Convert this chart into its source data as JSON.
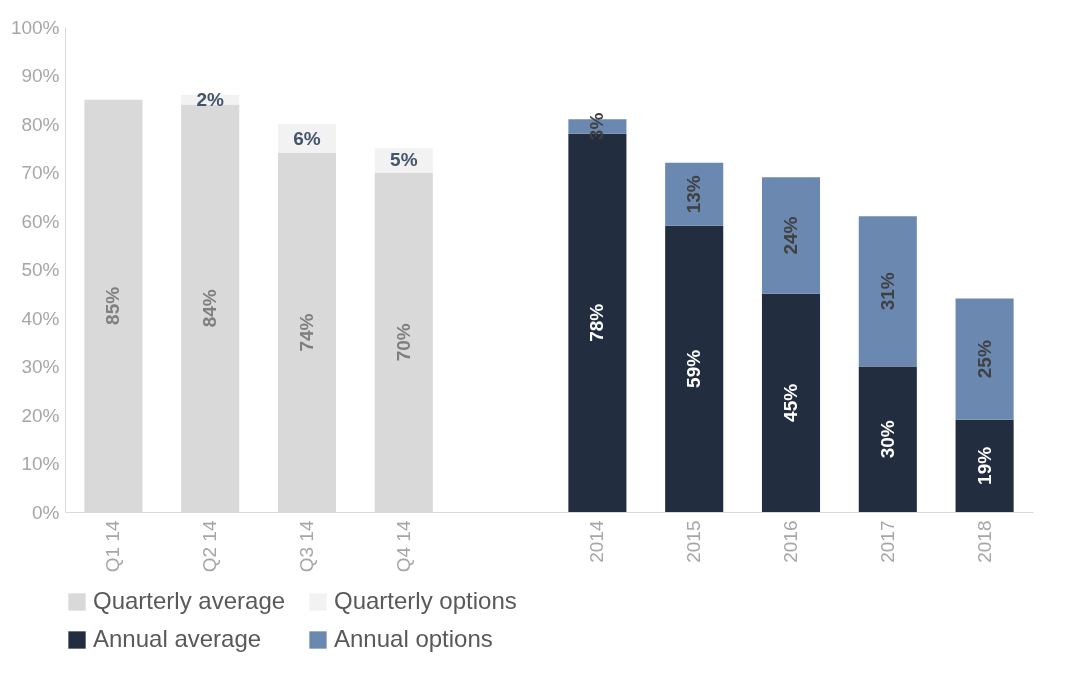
{
  "chart_data": {
    "type": "bar",
    "stacked": true,
    "categories": [
      "Q1 14",
      "Q2 14",
      "Q3 14",
      "Q4 14",
      null,
      "2014",
      "2015",
      "2016",
      "2017",
      "2018"
    ],
    "series": [
      {
        "name": "Quarterly average",
        "color": "#d9d9d9",
        "values": [
          85,
          84,
          74,
          70,
          null,
          null,
          null,
          null,
          null,
          null
        ],
        "value_labels": [
          "85%",
          "84%",
          "74%",
          "70%",
          null,
          null,
          null,
          null,
          null,
          null
        ]
      },
      {
        "name": "Quarterly options",
        "color": "#f2f2f2",
        "values": [
          null,
          2,
          6,
          5,
          null,
          null,
          null,
          null,
          null,
          null
        ],
        "value_labels": [
          null,
          "2%",
          "6%",
          "5%",
          null,
          null,
          null,
          null,
          null,
          null
        ]
      },
      {
        "name": "Annual average",
        "color": "#222d3f",
        "values": [
          null,
          null,
          null,
          null,
          null,
          78,
          59,
          45,
          30,
          19
        ],
        "value_labels": [
          null,
          null,
          null,
          null,
          null,
          "78%",
          "59%",
          "45%",
          "30%",
          "19%"
        ]
      },
      {
        "name": "Annual options",
        "color": "#6a88b0",
        "values": [
          null,
          null,
          null,
          null,
          null,
          3,
          13,
          24,
          31,
          25
        ],
        "value_labels": [
          null,
          null,
          null,
          null,
          null,
          "3%",
          "13%",
          "24%",
          "31%",
          "25%"
        ]
      }
    ],
    "ylim": [
      0,
      100
    ],
    "yticks": [
      {
        "value": 0,
        "label": "0%"
      },
      {
        "value": 10,
        "label": "10%"
      },
      {
        "value": 20,
        "label": "20%"
      },
      {
        "value": 30,
        "label": "30%"
      },
      {
        "value": 40,
        "label": "40%"
      },
      {
        "value": 50,
        "label": "50%"
      },
      {
        "value": 60,
        "label": "60%"
      },
      {
        "value": 70,
        "label": "70%"
      },
      {
        "value": 80,
        "label": "80%"
      },
      {
        "value": 90,
        "label": "90%"
      },
      {
        "value": 100,
        "label": "100%"
      }
    ],
    "grid": false,
    "legend": "bottom"
  }
}
